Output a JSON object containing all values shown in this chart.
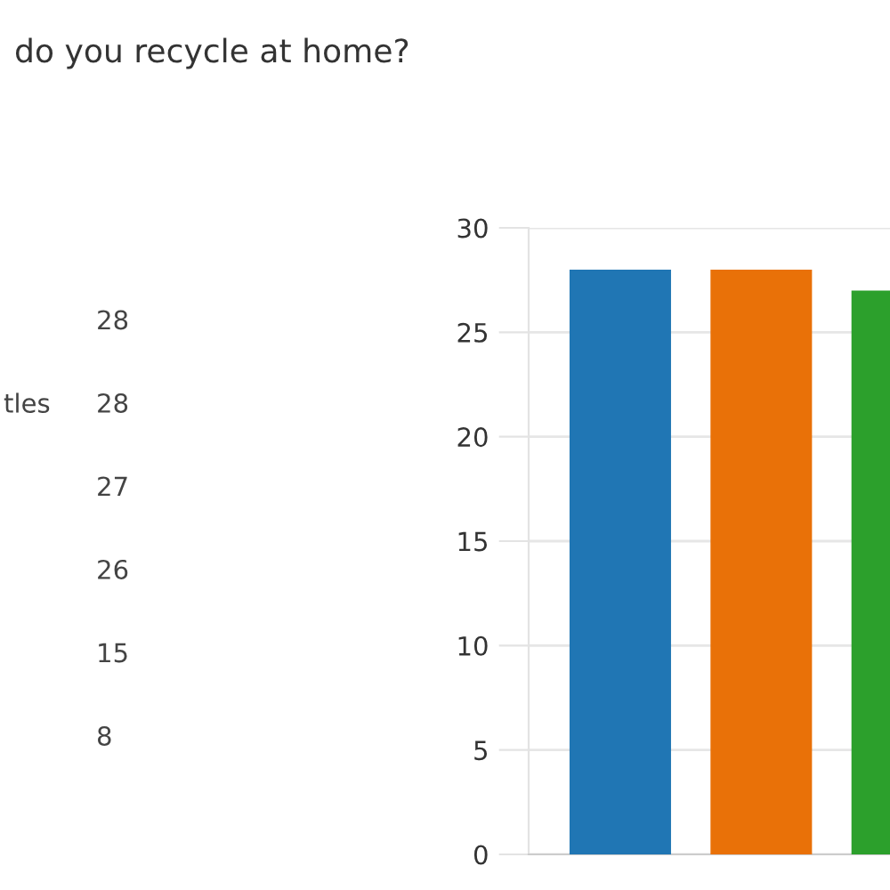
{
  "chart_data": [
    {
      "type": "other",
      "title": "do you recycle at home?",
      "annotations": [
        "28",
        "tles",
        "28",
        "27",
        "26",
        "15",
        "8"
      ]
    },
    {
      "type": "bar",
      "categories": [
        null,
        null,
        null
      ],
      "values": [
        28,
        28,
        27
      ],
      "colors": [
        "#2076b4",
        "#e97108",
        "#2ca02c"
      ],
      "ylim": [
        0,
        30
      ],
      "yticks": [
        0,
        5,
        10,
        15,
        20,
        25,
        30
      ],
      "grid": "y"
    }
  ]
}
